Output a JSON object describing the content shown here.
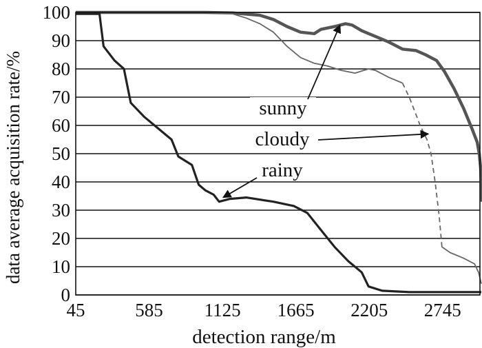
{
  "chart_data": {
    "type": "line",
    "title": "",
    "xlabel": "detection range/m",
    "ylabel": "data average acquisition rate/%",
    "xlim": [
      45,
      3020
    ],
    "ylim": [
      0,
      100
    ],
    "x_ticks": [
      45,
      585,
      1125,
      1665,
      2205,
      2745
    ],
    "y_ticks": [
      0,
      10,
      20,
      30,
      40,
      50,
      60,
      70,
      80,
      90,
      100
    ],
    "grid": "horizontal",
    "legend": "none (series labelled by arrows on the plot)",
    "series": [
      {
        "name": "sunny",
        "color": "#555555",
        "style": "thick",
        "points": [
          [
            45,
            100
          ],
          [
            200,
            100
          ],
          [
            600,
            100
          ],
          [
            1000,
            100
          ],
          [
            1200,
            99.8
          ],
          [
            1400,
            99
          ],
          [
            1500,
            97.5
          ],
          [
            1600,
            95
          ],
          [
            1700,
            93
          ],
          [
            1800,
            92.5
          ],
          [
            1850,
            94
          ],
          [
            1950,
            95
          ],
          [
            2030,
            96
          ],
          [
            2080,
            95.5
          ],
          [
            2150,
            93.5
          ],
          [
            2250,
            91.5
          ],
          [
            2350,
            89.5
          ],
          [
            2450,
            87
          ],
          [
            2550,
            86.5
          ],
          [
            2620,
            85
          ],
          [
            2700,
            83
          ],
          [
            2760,
            79
          ],
          [
            2830,
            73
          ],
          [
            2900,
            66
          ],
          [
            2960,
            59
          ],
          [
            3000,
            54
          ],
          [
            3015,
            50
          ],
          [
            3025,
            45
          ],
          [
            3035,
            33
          ]
        ]
      },
      {
        "name": "cloudy",
        "color": "#666666",
        "style": "thin, dashed between 2450 and 2740 m",
        "points": [
          [
            45,
            100
          ],
          [
            600,
            100
          ],
          [
            1000,
            100
          ],
          [
            1200,
            99.5
          ],
          [
            1300,
            98
          ],
          [
            1400,
            96
          ],
          [
            1500,
            93
          ],
          [
            1600,
            88
          ],
          [
            1700,
            84
          ],
          [
            1800,
            82
          ],
          [
            1900,
            81
          ],
          [
            2000,
            79.5
          ],
          [
            2100,
            78.5
          ],
          [
            2200,
            80
          ],
          [
            2250,
            79.5
          ],
          [
            2350,
            77
          ],
          [
            2450,
            75
          ],
          [
            2500,
            70
          ],
          [
            2580,
            60
          ],
          [
            2630,
            55
          ],
          [
            2660,
            50
          ],
          [
            2690,
            40
          ],
          [
            2720,
            28
          ],
          [
            2740,
            17
          ],
          [
            2800,
            15
          ],
          [
            2900,
            13
          ],
          [
            2980,
            11
          ],
          [
            3010,
            8
          ],
          [
            3030,
            4
          ]
        ]
      },
      {
        "name": "rainy",
        "color": "#222222",
        "style": "thick",
        "points": [
          [
            45,
            99.5
          ],
          [
            220,
            99.5
          ],
          [
            250,
            88
          ],
          [
            330,
            83
          ],
          [
            400,
            80
          ],
          [
            450,
            68
          ],
          [
            550,
            63
          ],
          [
            650,
            59
          ],
          [
            750,
            55
          ],
          [
            800,
            49
          ],
          [
            900,
            46
          ],
          [
            950,
            39
          ],
          [
            1000,
            37
          ],
          [
            1060,
            35.5
          ],
          [
            1100,
            33
          ],
          [
            1180,
            34
          ],
          [
            1300,
            34.5
          ],
          [
            1500,
            33
          ],
          [
            1650,
            31.5
          ],
          [
            1750,
            29
          ],
          [
            1850,
            23
          ],
          [
            1950,
            17
          ],
          [
            2050,
            12
          ],
          [
            2150,
            8
          ],
          [
            2200,
            3
          ],
          [
            2300,
            1.5
          ],
          [
            2500,
            1
          ],
          [
            3000,
            1
          ],
          [
            3030,
            1
          ]
        ]
      }
    ],
    "annotations": [
      {
        "text": "sunny",
        "target_x": 1990,
        "target_y": 95.5
      },
      {
        "text": "cloudy",
        "target_x": 2640,
        "target_y": 57
      },
      {
        "text": "rainy",
        "target_x": 1130,
        "target_y": 34.5
      }
    ]
  }
}
